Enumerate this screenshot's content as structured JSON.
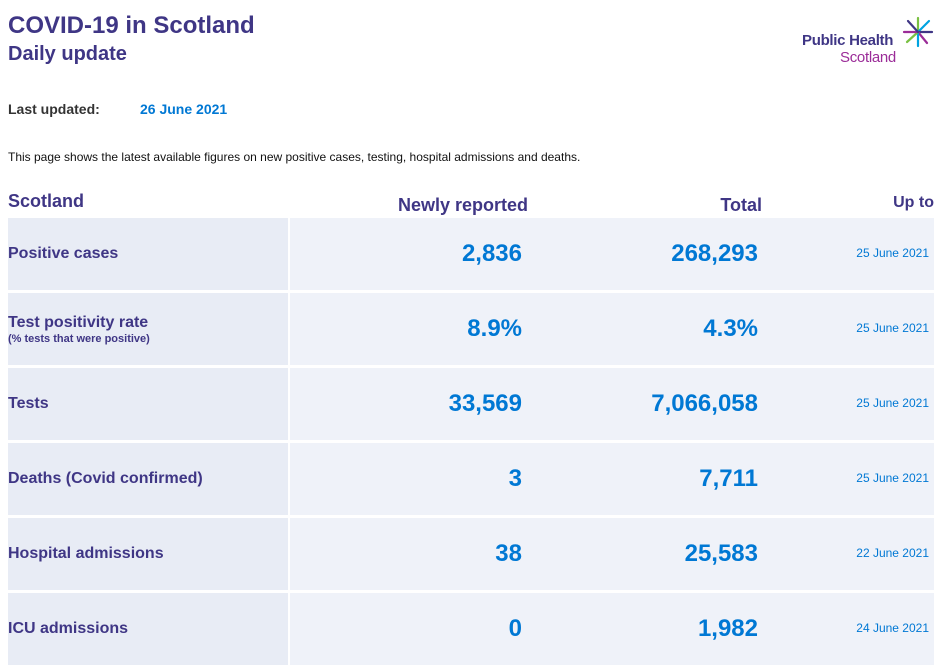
{
  "header": {
    "title": "COVID-19 in Scotland",
    "subtitle": "Daily update"
  },
  "logo": {
    "line1": "Public Health",
    "line2": "Scotland",
    "icon": "star-burst-icon"
  },
  "meta": {
    "last_updated_label": "Last updated:",
    "last_updated_value": "26 June 2021"
  },
  "intro": "This page shows the latest available figures on new positive cases, testing, hospital admissions and deaths.",
  "table": {
    "headers": {
      "region": "Scotland",
      "newly_reported": "Newly reported",
      "total": "Total",
      "up_to": "Up to"
    },
    "rows": [
      {
        "label": "Positive cases",
        "sublabel": "",
        "new": "2,836",
        "total": "268,293",
        "up_to": "25 June 2021"
      },
      {
        "label": "Test positivity rate",
        "sublabel": "(% tests that were positive)",
        "new": "8.9%",
        "total": "4.3%",
        "up_to": "25 June 2021"
      },
      {
        "label": "Tests",
        "sublabel": "",
        "new": "33,569",
        "total": "7,066,058",
        "up_to": "25 June 2021"
      },
      {
        "label": "Deaths (Covid confirmed)",
        "sublabel": "",
        "new": "3",
        "total": "7,711",
        "up_to": "25 June 2021"
      },
      {
        "label": "Hospital admissions",
        "sublabel": "",
        "new": "38",
        "total": "25,583",
        "up_to": "22 June 2021"
      },
      {
        "label": "ICU admissions",
        "sublabel": "",
        "new": "0",
        "total": "1,982",
        "up_to": "24 June 2021"
      }
    ]
  },
  "colors": {
    "heading": "#3f3685",
    "value": "#0078d4",
    "label_cell": "#e8ecf5",
    "value_cell": "#eff2f9",
    "logo_accent": "#9b2c98"
  }
}
